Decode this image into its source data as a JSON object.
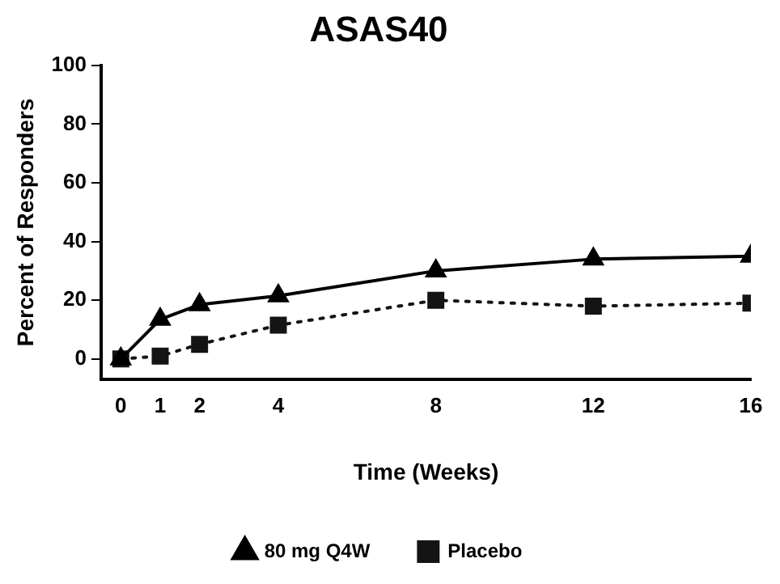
{
  "chart_data": {
    "type": "line",
    "title": "ASAS40",
    "xlabel": "Time (Weeks)",
    "ylabel": "Percent of Responders",
    "x": [
      0,
      1,
      2,
      4,
      8,
      12,
      16
    ],
    "series": [
      {
        "name": "80 mg Q4W",
        "color": "#000000",
        "marker": "triangle",
        "line_style": "solid",
        "values": [
          0,
          13.5,
          18.5,
          21.5,
          30,
          34,
          35
        ]
      },
      {
        "name": "Placebo",
        "color": "#141414",
        "marker": "square",
        "line_style": "dotted",
        "values": [
          0,
          1,
          5,
          11.5,
          20,
          18,
          19
        ]
      }
    ],
    "xlim": [
      -0.5,
      16
    ],
    "xticks": [
      0,
      1,
      2,
      4,
      8,
      12,
      16
    ],
    "ylim": [
      -7,
      100
    ],
    "yticks": [
      0,
      20,
      40,
      60,
      80,
      100
    ],
    "grid": false,
    "legend": "bottom"
  }
}
